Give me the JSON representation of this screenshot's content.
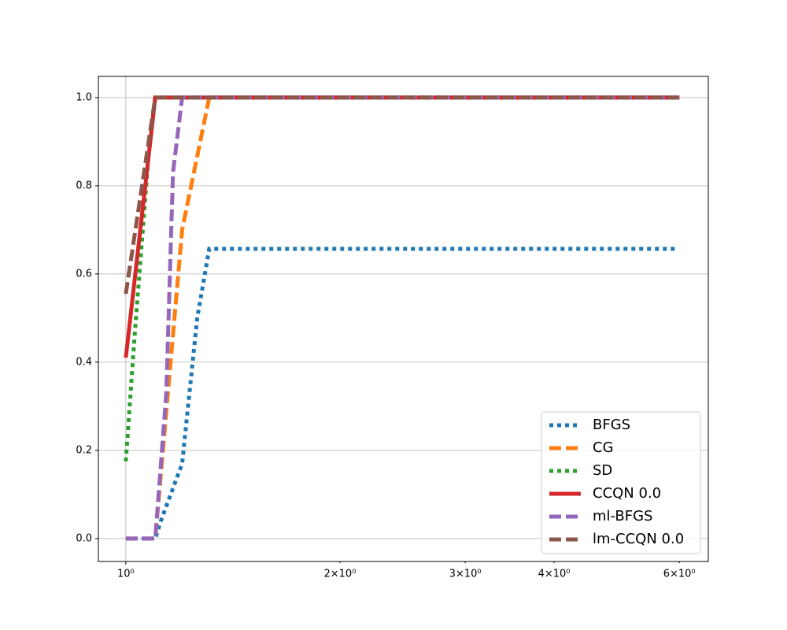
{
  "chart_data": {
    "type": "line",
    "xscale": "log",
    "grid": true,
    "legend": "lower right",
    "xlim": [
      0.915,
      6.59
    ],
    "ylim": [
      -0.052,
      1.048
    ],
    "xticks": [
      {
        "value": 1,
        "label": "10⁰",
        "major": true
      },
      {
        "value": 2,
        "label": "2×10⁰"
      },
      {
        "value": 3,
        "label": "3×10⁰"
      },
      {
        "value": 4,
        "label": "4×10⁰"
      },
      {
        "value": 6,
        "label": "6×10⁰"
      }
    ],
    "yticks": [
      {
        "value": 0,
        "label": "0.0"
      },
      {
        "value": 0.2,
        "label": "0.2"
      },
      {
        "value": 0.4,
        "label": "0.4"
      },
      {
        "value": 0.6,
        "label": "0.6"
      },
      {
        "value": 0.8,
        "label": "0.8"
      },
      {
        "value": 1,
        "label": "1.0"
      }
    ],
    "series": [
      {
        "name": "BFGS",
        "color": "#1f77b4",
        "linestyle": "dotted",
        "x": [
          1.0,
          1.1,
          1.12,
          1.2,
          1.26,
          1.31,
          5.95
        ],
        "values": [
          0,
          0,
          0.04,
          0.17,
          0.5,
          0.657,
          0.657
        ]
      },
      {
        "name": "CG",
        "color": "#ff7f0e",
        "linestyle": "dashed",
        "x": [
          1.0,
          1.1,
          1.2,
          1.31,
          6.0
        ],
        "values": [
          0,
          0,
          0.7,
          1,
          1
        ]
      },
      {
        "name": "SD",
        "color": "#2ca02c",
        "linestyle": "dotted",
        "x": [
          1.0,
          1.03,
          1.08,
          1.1,
          6.0
        ],
        "values": [
          0.175,
          0.47,
          0.9,
          1,
          1
        ]
      },
      {
        "name": "CCQN 0.0",
        "color": "#d62728",
        "linestyle": "solid",
        "x": [
          1.0,
          1.1,
          6.0
        ],
        "values": [
          0.41,
          1,
          1
        ]
      },
      {
        "name": "ml-BFGS",
        "color": "#9467bd",
        "linestyle": "dashed",
        "x": [
          1.0,
          1.1,
          1.14,
          1.165,
          1.2,
          6.0
        ],
        "values": [
          0,
          0,
          0.33,
          0.83,
          1,
          1
        ]
      },
      {
        "name": "lm-CCQN 0.0",
        "color": "#8c564b",
        "linestyle": "dashed",
        "x": [
          1.0,
          1.1,
          6.0
        ],
        "values": [
          0.555,
          1,
          1
        ]
      }
    ]
  }
}
